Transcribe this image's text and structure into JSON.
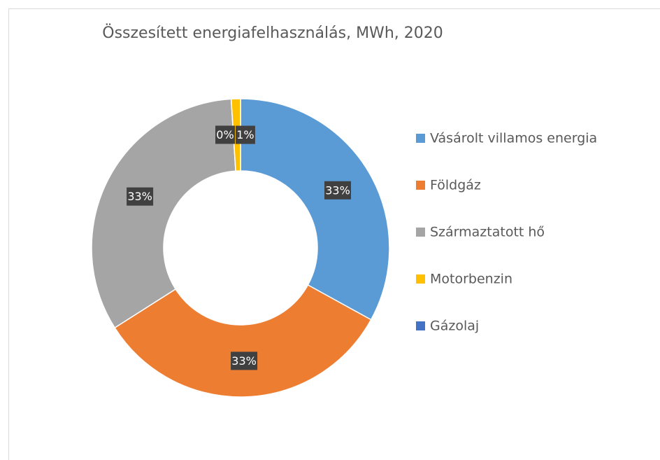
{
  "chart_data": {
    "type": "donut",
    "title": "Összesített energiafelhasználás, MWh, 2020",
    "categories": [
      "Vásárolt villamos energia",
      "Földgáz",
      "Származtatott hő",
      "Motorbenzin",
      "Gázolaj"
    ],
    "values": [
      33,
      33,
      33,
      1,
      0
    ],
    "value_labels": [
      "33%",
      "33%",
      "33%",
      "1%",
      "0%"
    ],
    "colors": [
      "#5b9bd5",
      "#ed7d31",
      "#a5a5a5",
      "#ffc000",
      "#4472c4"
    ],
    "legend": "right"
  }
}
